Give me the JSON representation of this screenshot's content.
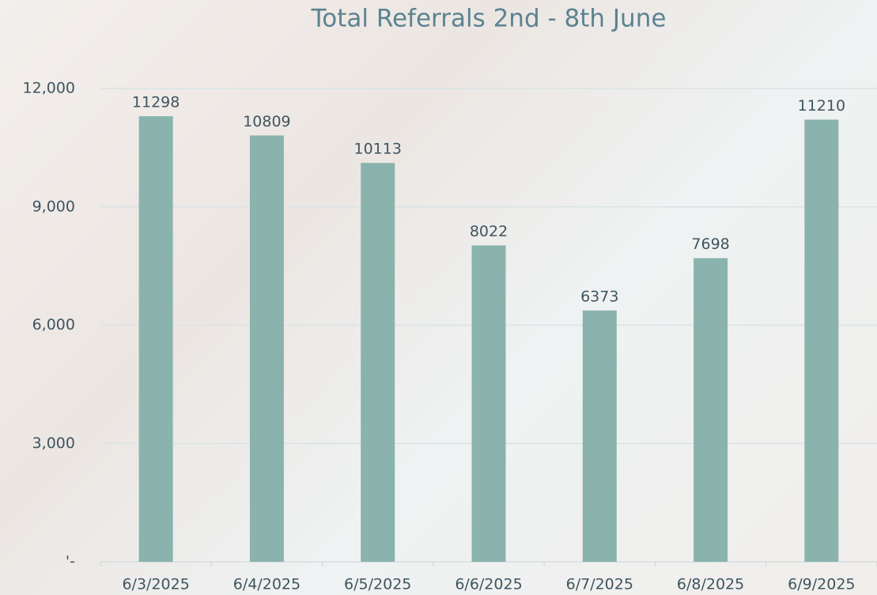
{
  "chart_data": {
    "type": "bar",
    "title": "Total Referrals 2nd - 8th June",
    "categories": [
      "6/3/2025",
      "6/4/2025",
      "6/5/2025",
      "6/6/2025",
      "6/7/2025",
      "6/8/2025",
      "6/9/2025"
    ],
    "values": [
      11298,
      10809,
      10113,
      8022,
      6373,
      7698,
      11210
    ],
    "color": "#8ab3ae",
    "ylim": [
      0,
      12000
    ],
    "yticks": [
      {
        "value": 0,
        "label": "'-"
      },
      {
        "value": 3000,
        "label": "3,000"
      },
      {
        "value": 6000,
        "label": "6,000"
      },
      {
        "value": 9000,
        "label": "9,000"
      },
      {
        "value": 12000,
        "label": "12,000"
      }
    ],
    "grid": true
  }
}
